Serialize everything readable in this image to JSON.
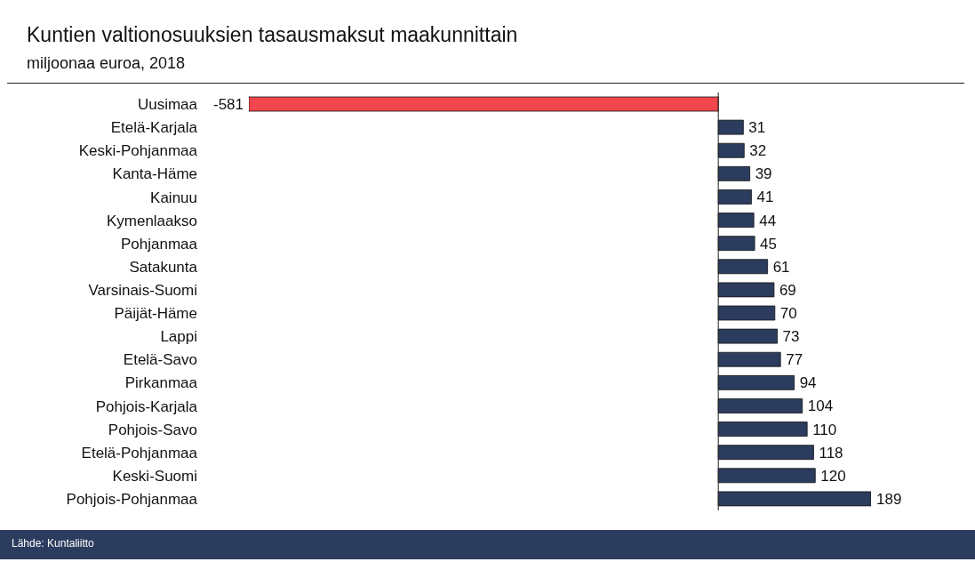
{
  "chart_data": {
    "type": "bar",
    "orientation": "horizontal",
    "title": "Kuntien valtionosuuksien tasausmaksut maakunnittain",
    "subtitle": "miljoonaa euroa, 2018",
    "categories": [
      "Uusimaa",
      "Etelä-Karjala",
      "Keski-Pohjanmaa",
      "Kanta-Häme",
      "Kainuu",
      "Kymenlaakso",
      "Pohjanmaa",
      "Satakunta",
      "Varsinais-Suomi",
      "Päijät-Häme",
      "Lappi",
      "Etelä-Savo",
      "Pirkanmaa",
      "Pohjois-Karjala",
      "Pohjois-Savo",
      "Etelä-Pohjanmaa",
      "Keski-Suomi",
      "Pohjois-Pohjanmaa"
    ],
    "values": [
      -581,
      31,
      32,
      39,
      41,
      44,
      45,
      61,
      69,
      70,
      73,
      77,
      94,
      104,
      110,
      118,
      120,
      189
    ],
    "colors": [
      "#f2464e",
      "#2b3c5e",
      "#2b3c5e",
      "#2b3c5e",
      "#2b3c5e",
      "#2b3c5e",
      "#2b3c5e",
      "#2b3c5e",
      "#2b3c5e",
      "#2b3c5e",
      "#2b3c5e",
      "#2b3c5e",
      "#2b3c5e",
      "#2b3c5e",
      "#2b3c5e",
      "#2b3c5e",
      "#2b3c5e",
      "#2b3c5e"
    ],
    "data_labels": true,
    "tick_labels": "y",
    "annotations": [
      "Lähde: Kuntaliitto"
    ]
  }
}
